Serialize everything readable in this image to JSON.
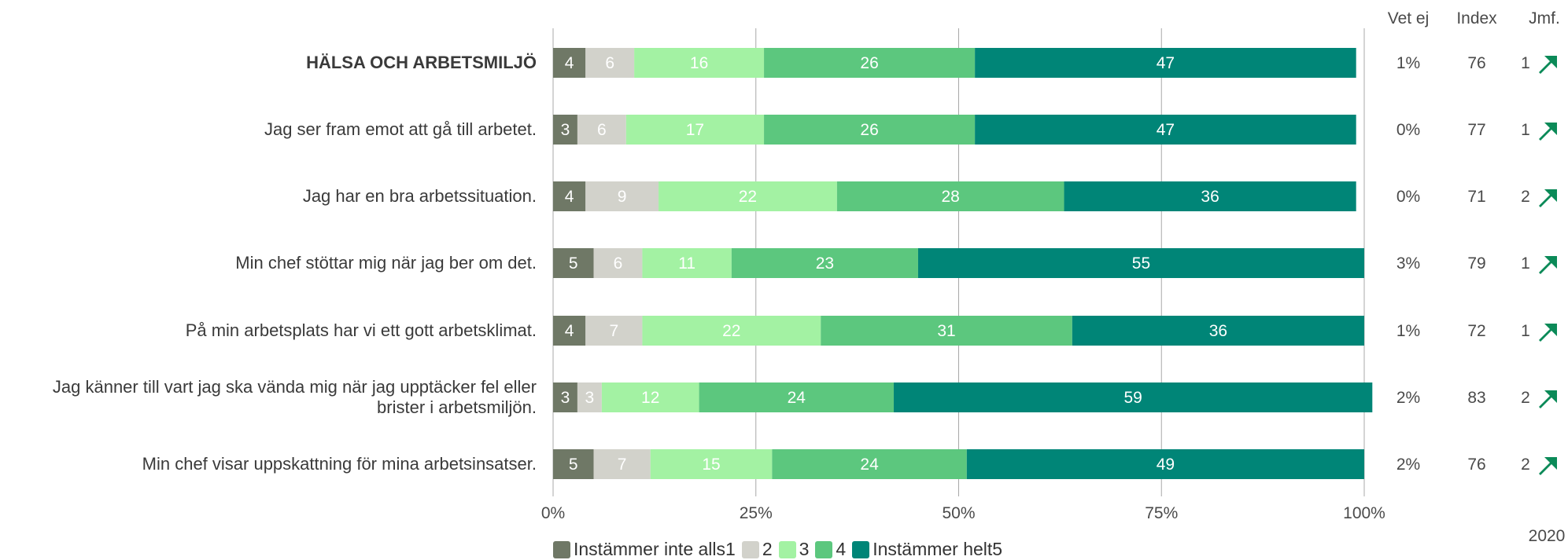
{
  "chart_data": {
    "type": "bar",
    "orientation": "horizontal",
    "stacked": true,
    "categories": [
      "HÄLSA OCH ARBETSMILJÖ",
      "Jag ser fram emot att gå till arbetet.",
      "Jag har en bra arbetssituation.",
      "Min chef stöttar mig när jag ber om det.",
      "På min arbetsplats har vi ett gott arbetsklimat.",
      "Jag känner till vart jag ska vända mig när jag upptäcker fel eller brister i arbetsmiljön.",
      "Min chef visar uppskattning för mina arbetsinsatser."
    ],
    "category_lines": [
      [
        "HÄLSA OCH ARBETSMILJÖ"
      ],
      [
        "Jag ser fram emot att gå till arbetet."
      ],
      [
        "Jag har en bra arbetssituation."
      ],
      [
        "Min chef stöttar mig när jag ber om det."
      ],
      [
        "På min arbetsplats har vi ett gott arbetsklimat."
      ],
      [
        "Jag känner till vart jag ska vända mig när jag upptäcker fel eller",
        "brister i arbetsmiljön."
      ],
      [
        "Min chef visar uppskattning för mina arbetsinsatser."
      ]
    ],
    "bold_categories": [
      0
    ],
    "series": [
      {
        "name": "Instämmer inte alls1",
        "color": "#6f7866",
        "label_color": "#ffffff",
        "values": [
          4,
          3,
          4,
          5,
          4,
          3,
          5
        ]
      },
      {
        "name": "2",
        "color": "#d2d2cb",
        "label_color": "#ffffff",
        "values": [
          6,
          6,
          9,
          6,
          7,
          3,
          7
        ]
      },
      {
        "name": "3",
        "color": "#a3f2a3",
        "label_color": "#ffffff",
        "values": [
          16,
          17,
          22,
          11,
          22,
          12,
          15
        ]
      },
      {
        "name": "4",
        "color": "#5cc77e",
        "label_color": "#ffffff",
        "values": [
          26,
          26,
          28,
          23,
          31,
          24,
          24
        ]
      },
      {
        "name": "Instämmer helt5",
        "color": "#008577",
        "label_color": "#ffffff",
        "values": [
          47,
          47,
          36,
          55,
          36,
          59,
          49
        ]
      }
    ],
    "xlim": [
      0,
      100
    ],
    "x_ticks": [
      "0%",
      "25%",
      "50%",
      "75%",
      "100%"
    ],
    "grid": true,
    "legend": "bottom",
    "side_columns": {
      "headers": [
        "Vet ej",
        "Index",
        "Jmf."
      ],
      "vet_ej": [
        "1%",
        "0%",
        "0%",
        "3%",
        "1%",
        "2%",
        "2%"
      ],
      "index": [
        76,
        77,
        71,
        79,
        72,
        83,
        76
      ],
      "jmf": [
        1,
        1,
        2,
        1,
        1,
        2,
        2
      ],
      "jmf_year": "2020",
      "trend_icon": "arrow-up-right-icon",
      "trend_color": "#0b8a58"
    }
  }
}
